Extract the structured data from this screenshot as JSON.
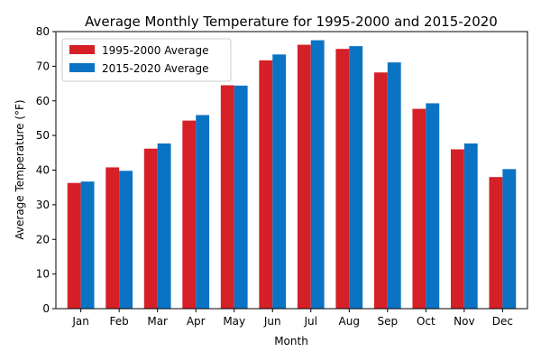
{
  "chart_data": {
    "type": "bar",
    "title": "Average Monthly Temperature for 1995-2000 and 2015-2020",
    "xlabel": "Month",
    "ylabel": "Average Temperature (°F)",
    "categories": [
      "Jan",
      "Feb",
      "Mar",
      "Apr",
      "May",
      "Jun",
      "Jul",
      "Aug",
      "Sep",
      "Oct",
      "Nov",
      "Dec"
    ],
    "series": [
      {
        "name": "1995-2000 Average",
        "color": "#d62027",
        "values": [
          36.3,
          40.8,
          46.2,
          54.3,
          64.5,
          71.7,
          76.2,
          75.0,
          68.2,
          57.7,
          46.0,
          38.0
        ]
      },
      {
        "name": "2015-2020 Average",
        "color": "#0b73c4",
        "values": [
          36.7,
          39.8,
          47.7,
          55.9,
          64.4,
          73.4,
          77.5,
          75.8,
          71.1,
          59.3,
          47.7,
          40.3
        ]
      }
    ],
    "ylim": [
      0,
      80
    ],
    "yticks": [
      0,
      10,
      20,
      30,
      40,
      50,
      60,
      70,
      80
    ],
    "legend": "top-left",
    "grid": false
  }
}
